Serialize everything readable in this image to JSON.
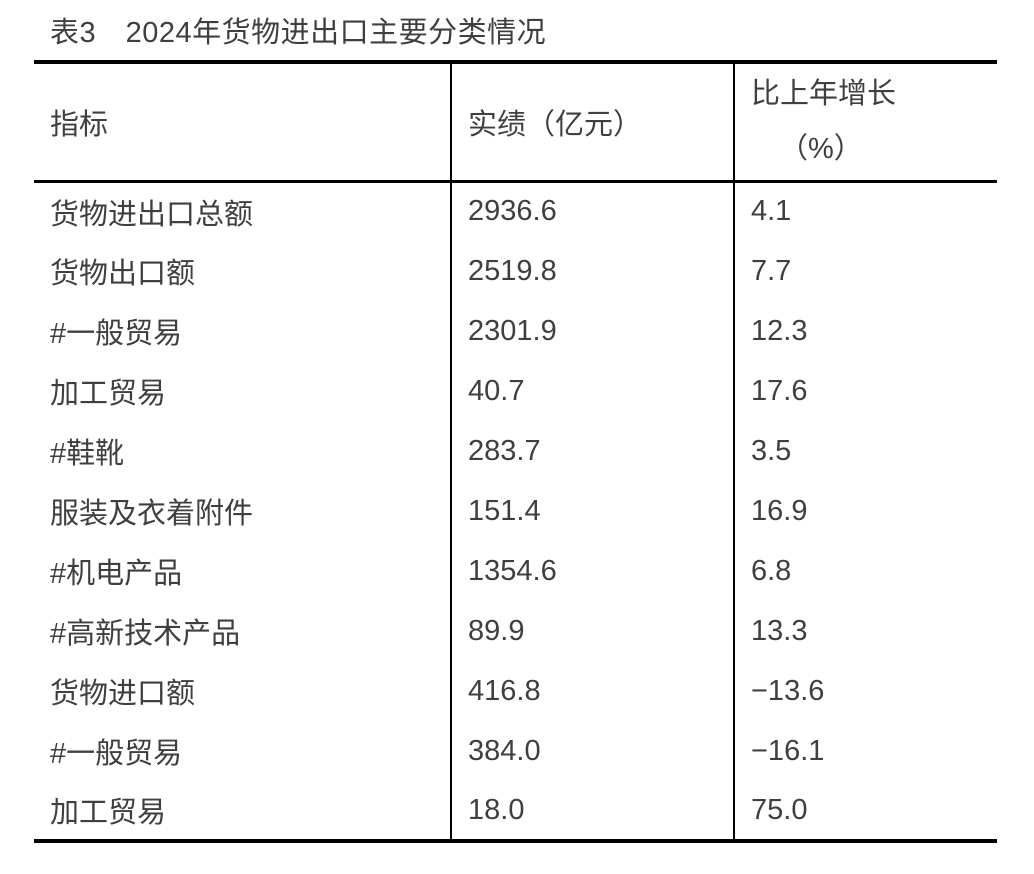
{
  "page": {
    "title": "表3　2024年货物进出口主要分类情况"
  },
  "table": {
    "col_headers": {
      "indicator": "指标",
      "value": "实绩（亿元）",
      "growth_line1": "比上年增长",
      "growth_line2": "（%）"
    },
    "rows": [
      {
        "indicator": "货物进出口总额",
        "value": "2936.6",
        "growth": "4.1"
      },
      {
        "indicator": "货物出口额",
        "value": "2519.8",
        "growth": "7.7"
      },
      {
        "indicator": "#一般贸易",
        "value": "2301.9",
        "growth": "12.3"
      },
      {
        "indicator": "加工贸易",
        "value": "40.7",
        "growth": "17.6"
      },
      {
        "indicator": "#鞋靴",
        "value": "283.7",
        "growth": "3.5"
      },
      {
        "indicator": "服装及衣着附件",
        "value": "151.4",
        "growth": "16.9"
      },
      {
        "indicator": "#机电产品",
        "value": "1354.6",
        "growth": "6.8"
      },
      {
        "indicator": "#高新技术产品",
        "value": "89.9",
        "growth": "13.3"
      },
      {
        "indicator": "货物进口额",
        "value": "416.8",
        "growth": "−13.6"
      },
      {
        "indicator": "#一般贸易",
        "value": "384.0",
        "growth": "−16.1"
      },
      {
        "indicator": "加工贸易",
        "value": "18.0",
        "growth": "75.0"
      }
    ]
  },
  "colors": {
    "text": "#3f3f3f",
    "border": "#000000",
    "background": "#ffffff"
  }
}
